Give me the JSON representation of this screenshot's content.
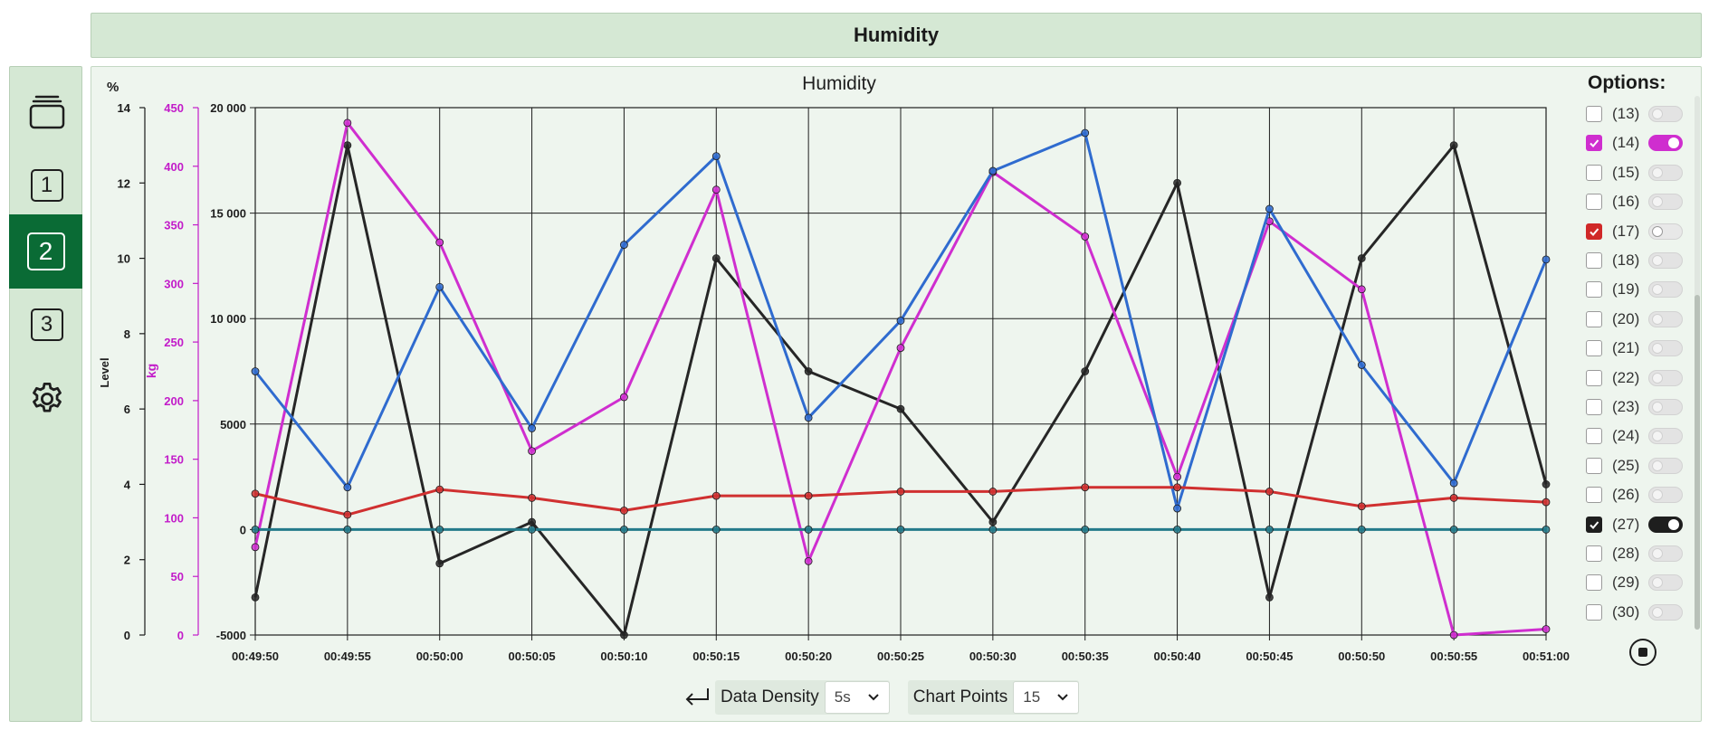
{
  "header": {
    "title": "Humidity"
  },
  "sidebar": {
    "items": [
      {
        "name": "layers",
        "icon": "layers-icon",
        "label": ""
      },
      {
        "name": "1",
        "label": "1"
      },
      {
        "name": "2",
        "label": "2",
        "active": true
      },
      {
        "name": "3",
        "label": "3"
      },
      {
        "name": "settings",
        "icon": "gear-icon",
        "label": ""
      }
    ]
  },
  "chart_data": {
    "type": "line",
    "title": "Humidity",
    "x": [
      "00:49:50",
      "00:49:55",
      "00:50:00",
      "00:50:05",
      "00:50:10",
      "00:50:15",
      "00:50:20",
      "00:50:25",
      "00:50:30",
      "00:50:35",
      "00:50:40",
      "00:50:45",
      "00:50:50",
      "00:50:55",
      "00:51:00"
    ],
    "axes": [
      {
        "id": "level",
        "label": "Level",
        "unit": "%",
        "range": [
          0,
          14
        ],
        "ticks": [
          0,
          2,
          4,
          6,
          8,
          10,
          12,
          14
        ],
        "color": "#1a1a1a"
      },
      {
        "id": "kg",
        "label": "kg",
        "range": [
          0,
          450
        ],
        "ticks": [
          0,
          50,
          100,
          150,
          200,
          250,
          300,
          350,
          400,
          450
        ],
        "color": "#c21bc9"
      },
      {
        "id": "main",
        "label": "",
        "range": [
          -5000,
          20000
        ],
        "ticks": [
          "-5000",
          "0",
          "5000",
          "10 000",
          "15 000",
          "20 000"
        ],
        "tick_values": [
          -5000,
          0,
          5000,
          10000,
          15000,
          20000
        ],
        "color": "#1a1a1a"
      }
    ],
    "grid": true,
    "series": [
      {
        "axis": "level",
        "color": "#262626",
        "values": [
          1.0,
          13.0,
          1.9,
          3.0,
          0.0,
          10.0,
          7.0,
          6.0,
          3.0,
          7.0,
          12.0,
          1.0,
          10.0,
          13.0,
          4.0
        ]
      },
      {
        "axis": "kg",
        "color": "#cf2ecf",
        "values": [
          75,
          437,
          335,
          157,
          203,
          380,
          63,
          245,
          395,
          340,
          135,
          353,
          295,
          0,
          5
        ]
      },
      {
        "axis": "main",
        "color": "#2f6bcf",
        "values": [
          7500,
          2000,
          11500,
          4800,
          13500,
          17700,
          5300,
          9900,
          17000,
          18800,
          1000,
          15200,
          7800,
          2200,
          12800
        ]
      },
      {
        "axis": "main",
        "color": "#d03030",
        "values": [
          1700,
          700,
          1900,
          1500,
          900,
          1600,
          1600,
          1800,
          1800,
          2000,
          2000,
          1800,
          1100,
          1500,
          1300
        ]
      },
      {
        "axis": "main",
        "color": "#237a8a",
        "values": [
          0,
          0,
          0,
          0,
          0,
          0,
          0,
          0,
          0,
          0,
          0,
          0,
          0,
          0,
          0
        ]
      }
    ]
  },
  "options": {
    "title": "Options:",
    "items": [
      {
        "label": "(13)",
        "checked": false,
        "toggle": "off",
        "color": ""
      },
      {
        "label": "(14)",
        "checked": true,
        "toggle": "on",
        "color": "#cf2ecf"
      },
      {
        "label": "(15)",
        "checked": false,
        "toggle": "off",
        "color": ""
      },
      {
        "label": "(16)",
        "checked": false,
        "toggle": "off",
        "color": ""
      },
      {
        "label": "(17)",
        "checked": true,
        "toggle": "partial",
        "color": "#d02828"
      },
      {
        "label": "(18)",
        "checked": false,
        "toggle": "off",
        "color": ""
      },
      {
        "label": "(19)",
        "checked": false,
        "toggle": "off",
        "color": ""
      },
      {
        "label": "(20)",
        "checked": false,
        "toggle": "off",
        "color": ""
      },
      {
        "label": "(21)",
        "checked": false,
        "toggle": "off",
        "color": ""
      },
      {
        "label": "(22)",
        "checked": false,
        "toggle": "off",
        "color": ""
      },
      {
        "label": "(23)",
        "checked": false,
        "toggle": "off",
        "color": ""
      },
      {
        "label": "(24)",
        "checked": false,
        "toggle": "off",
        "color": ""
      },
      {
        "label": "(25)",
        "checked": false,
        "toggle": "off",
        "color": ""
      },
      {
        "label": "(26)",
        "checked": false,
        "toggle": "off",
        "color": ""
      },
      {
        "label": "(27)",
        "checked": true,
        "toggle": "on",
        "color": "#1e1e1e"
      },
      {
        "label": "(28)",
        "checked": false,
        "toggle": "off",
        "color": ""
      },
      {
        "label": "(29)",
        "checked": false,
        "toggle": "off",
        "color": ""
      },
      {
        "label": "(30)",
        "checked": false,
        "toggle": "off",
        "color": ""
      }
    ]
  },
  "controls": {
    "return_icon": "return-icon",
    "data_density_label": "Data Density",
    "data_density_value": "5s",
    "chart_points_label": "Chart Points",
    "chart_points_value": "15"
  }
}
